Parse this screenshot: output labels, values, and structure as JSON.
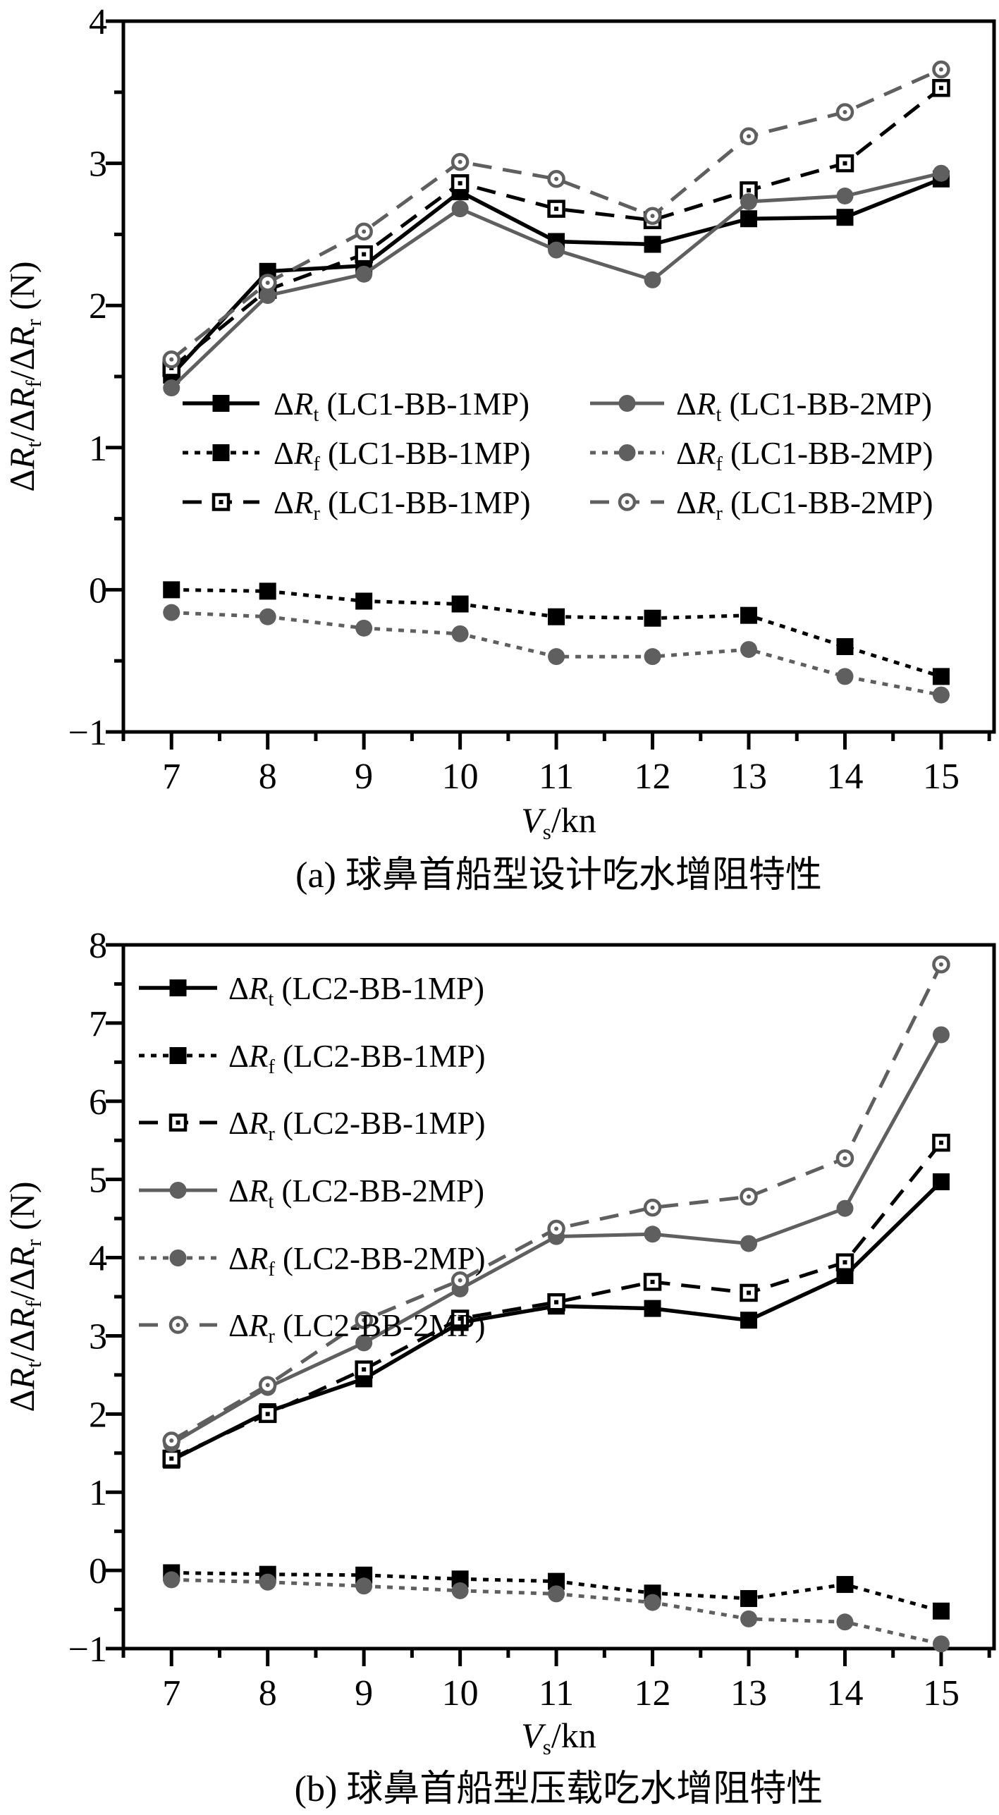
{
  "figure": {
    "background": "#ffffff",
    "colors": {
      "black": "#000000",
      "gray": "#5f5f5f"
    }
  },
  "chart_data": [
    {
      "panel": "a",
      "type": "line",
      "title": "(a) 球鼻首船型设计吃水增阻特性",
      "xlabel": "Vs/kn",
      "xlabel_rich": [
        {
          "t": "V",
          "i": 1
        },
        {
          "t": "s",
          "sub": 1
        },
        {
          "t": "/kn"
        }
      ],
      "ylabel": "ΔRt/ΔRf/ΔRr (N)",
      "ylabel_rich": [
        {
          "t": "Δ"
        },
        {
          "t": "R",
          "i": 1
        },
        {
          "t": "t",
          "sub": 1
        },
        {
          "t": "/Δ"
        },
        {
          "t": "R",
          "i": 1
        },
        {
          "t": "f",
          "sub": 1
        },
        {
          "t": "/Δ"
        },
        {
          "t": "R",
          "i": 1
        },
        {
          "t": "r",
          "sub": 1
        },
        {
          "t": " (N)"
        }
      ],
      "x": [
        7,
        8,
        9,
        10,
        11,
        12,
        13,
        14,
        15
      ],
      "xlim": [
        6.5,
        15.55
      ],
      "ylim": [
        -1,
        4
      ],
      "xticks": [
        7,
        8,
        9,
        10,
        11,
        12,
        13,
        14,
        15
      ],
      "yticks": [
        -1,
        0,
        1,
        2,
        3,
        4
      ],
      "minor_step": 0.5,
      "grid": false,
      "legend_position": "center-left-two-columns",
      "series": [
        {
          "key": "rt-lc1-bb-1mp",
          "label": "ΔRt (LC1-BB-1MP)",
          "label_rich": [
            {
              "t": "Δ"
            },
            {
              "t": "R",
              "i": 1
            },
            {
              "t": "t",
              "sub": 1
            },
            {
              "t": " (LC1-BB-1MP)"
            }
          ],
          "color": "black",
          "line": "solid",
          "marker": "square-filled",
          "values": [
            1.51,
            2.24,
            2.28,
            2.8,
            2.45,
            2.43,
            2.61,
            2.62,
            2.89
          ]
        },
        {
          "key": "rf-lc1-bb-1mp",
          "label": "ΔRf (LC1-BB-1MP)",
          "label_rich": [
            {
              "t": "Δ"
            },
            {
              "t": "R",
              "i": 1
            },
            {
              "t": "f",
              "sub": 1
            },
            {
              "t": " (LC1-BB-1MP)"
            }
          ],
          "color": "black",
          "line": "dotted",
          "marker": "square-filled",
          "values": [
            0.0,
            -0.01,
            -0.08,
            -0.1,
            -0.19,
            -0.2,
            -0.18,
            -0.4,
            -0.61
          ]
        },
        {
          "key": "rr-lc1-bb-1mp",
          "label": "ΔRr (LC1-BB-1MP)",
          "label_rich": [
            {
              "t": "Δ"
            },
            {
              "t": "R",
              "i": 1
            },
            {
              "t": "r",
              "sub": 1
            },
            {
              "t": " (LC1-BB-1MP)"
            }
          ],
          "color": "black",
          "line": "dashed",
          "marker": "square-open",
          "values": [
            1.56,
            2.11,
            2.36,
            2.86,
            2.68,
            2.6,
            2.81,
            3.0,
            3.53
          ]
        },
        {
          "key": "rt-lc1-bb-2mp",
          "label": "ΔRt (LC1-BB-2MP)",
          "label_rich": [
            {
              "t": "Δ"
            },
            {
              "t": "R",
              "i": 1
            },
            {
              "t": "t",
              "sub": 1
            },
            {
              "t": " (LC1-BB-2MP)"
            }
          ],
          "color": "gray",
          "line": "solid",
          "marker": "circle-filled",
          "values": [
            1.42,
            2.07,
            2.22,
            2.68,
            2.39,
            2.18,
            2.73,
            2.77,
            2.93
          ]
        },
        {
          "key": "rf-lc1-bb-2mp",
          "label": "ΔRf (LC1-BB-2MP)",
          "label_rich": [
            {
              "t": "Δ"
            },
            {
              "t": "R",
              "i": 1
            },
            {
              "t": "f",
              "sub": 1
            },
            {
              "t": " (LC1-BB-2MP)"
            }
          ],
          "color": "gray",
          "line": "dotted",
          "marker": "circle-filled",
          "values": [
            -0.16,
            -0.19,
            -0.27,
            -0.31,
            -0.47,
            -0.47,
            -0.42,
            -0.61,
            -0.74
          ]
        },
        {
          "key": "rr-lc1-bb-2mp",
          "label": "ΔRr (LC1-BB-2MP)",
          "label_rich": [
            {
              "t": "Δ"
            },
            {
              "t": "R",
              "i": 1
            },
            {
              "t": "r",
              "sub": 1
            },
            {
              "t": " (LC1-BB-2MP)"
            }
          ],
          "color": "gray",
          "line": "dashed",
          "marker": "circle-open",
          "values": [
            1.62,
            2.16,
            2.52,
            3.01,
            2.89,
            2.63,
            3.19,
            3.36,
            3.66
          ]
        }
      ]
    },
    {
      "panel": "b",
      "type": "line",
      "title": "(b) 球鼻首船型压载吃水增阻特性",
      "xlabel": "Vs/kn",
      "xlabel_rich": [
        {
          "t": "V",
          "i": 1
        },
        {
          "t": "s",
          "sub": 1
        },
        {
          "t": "/kn"
        }
      ],
      "ylabel": "ΔRt/ΔRf/ΔRr (N)",
      "ylabel_rich": [
        {
          "t": "Δ"
        },
        {
          "t": "R",
          "i": 1
        },
        {
          "t": "t",
          "sub": 1
        },
        {
          "t": "/Δ"
        },
        {
          "t": "R",
          "i": 1
        },
        {
          "t": "f",
          "sub": 1
        },
        {
          "t": "/Δ"
        },
        {
          "t": "R",
          "i": 1
        },
        {
          "t": "r",
          "sub": 1
        },
        {
          "t": " (N)"
        }
      ],
      "x": [
        7,
        8,
        9,
        10,
        11,
        12,
        13,
        14,
        15
      ],
      "xlim": [
        6.5,
        15.55
      ],
      "ylim": [
        -1,
        8
      ],
      "xticks": [
        7,
        8,
        9,
        10,
        11,
        12,
        13,
        14,
        15
      ],
      "yticks": [
        -1,
        0,
        1,
        2,
        3,
        4,
        5,
        6,
        7,
        8
      ],
      "minor_step": 0.5,
      "grid": false,
      "legend_position": "top-left-column",
      "series": [
        {
          "key": "rt-lc2-bb-1mp",
          "label": "ΔRt (LC2-BB-1MP)",
          "label_rich": [
            {
              "t": "Δ"
            },
            {
              "t": "R",
              "i": 1
            },
            {
              "t": "t",
              "sub": 1
            },
            {
              "t": " (LC2-BB-1MP)"
            }
          ],
          "color": "black",
          "line": "solid",
          "marker": "square-filled",
          "values": [
            1.41,
            2.03,
            2.45,
            3.17,
            3.38,
            3.35,
            3.2,
            3.77,
            4.97
          ]
        },
        {
          "key": "rf-lc2-bb-1mp",
          "label": "ΔRf (LC2-BB-1MP)",
          "label_rich": [
            {
              "t": "Δ"
            },
            {
              "t": "R",
              "i": 1
            },
            {
              "t": "f",
              "sub": 1
            },
            {
              "t": " (LC2-BB-1MP)"
            }
          ],
          "color": "black",
          "line": "dotted",
          "marker": "square-filled",
          "values": [
            -0.03,
            -0.05,
            -0.06,
            -0.11,
            -0.14,
            -0.29,
            -0.36,
            -0.18,
            -0.52
          ]
        },
        {
          "key": "rr-lc2-bb-1mp",
          "label": "ΔRr (LC2-BB-1MP)",
          "label_rich": [
            {
              "t": "Δ"
            },
            {
              "t": "R",
              "i": 1
            },
            {
              "t": "r",
              "sub": 1
            },
            {
              "t": " (LC2-BB-1MP)"
            }
          ],
          "color": "black",
          "line": "dashed",
          "marker": "square-open",
          "values": [
            1.43,
            2.0,
            2.57,
            3.22,
            3.43,
            3.69,
            3.55,
            3.94,
            5.47
          ]
        },
        {
          "key": "rt-lc2-bb-2mp",
          "label": "ΔRt (LC2-BB-2MP)",
          "label_rich": [
            {
              "t": "Δ"
            },
            {
              "t": "R",
              "i": 1
            },
            {
              "t": "t",
              "sub": 1
            },
            {
              "t": " (LC2-BB-2MP)"
            }
          ],
          "color": "gray",
          "line": "solid",
          "marker": "circle-filled",
          "values": [
            1.62,
            2.34,
            2.91,
            3.6,
            4.27,
            4.3,
            4.18,
            4.63,
            6.85
          ]
        },
        {
          "key": "rf-lc2-bb-2mp",
          "label": "ΔRf (LC2-BB-2MP)",
          "label_rich": [
            {
              "t": "Δ"
            },
            {
              "t": "R",
              "i": 1
            },
            {
              "t": "f",
              "sub": 1
            },
            {
              "t": " (LC2-BB-2MP)"
            }
          ],
          "color": "gray",
          "line": "dotted",
          "marker": "circle-filled",
          "values": [
            -0.12,
            -0.15,
            -0.2,
            -0.26,
            -0.3,
            -0.41,
            -0.62,
            -0.66,
            -0.94
          ]
        },
        {
          "key": "rr-lc2-bb-2mp",
          "label": "ΔRr (LC2-BB-2MP)",
          "label_rich": [
            {
              "t": "Δ"
            },
            {
              "t": "R",
              "i": 1
            },
            {
              "t": "r",
              "sub": 1
            },
            {
              "t": " (LC2-BB-2MP)"
            }
          ],
          "color": "gray",
          "line": "dashed",
          "marker": "circle-open",
          "values": [
            1.66,
            2.37,
            3.2,
            3.71,
            4.37,
            4.64,
            4.78,
            5.27,
            7.75
          ]
        }
      ]
    }
  ]
}
